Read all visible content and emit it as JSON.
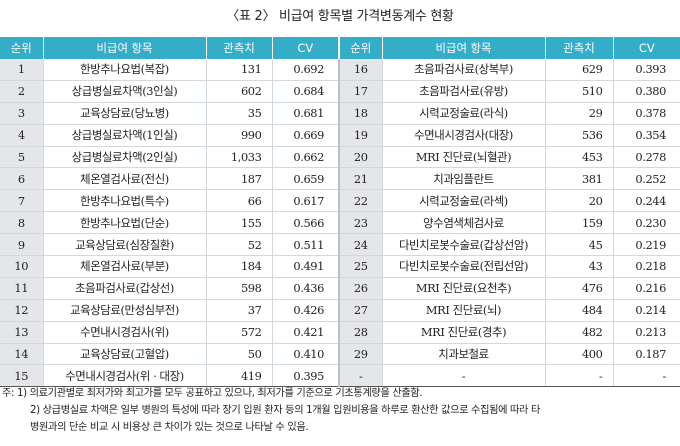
{
  "title": "〈표 2〉 비급여 항목별 가격변동계수 현황",
  "headers": [
    "순위",
    "비급여 항목",
    "관측치",
    "CV"
  ],
  "left_rows": [
    {
      "rank": "1",
      "item": "한방추나요법(복잡)",
      "count": "131",
      "cv": "0.692"
    },
    {
      "rank": "2",
      "item": "상급병실료차액(3인실)",
      "count": "602",
      "cv": "0.684"
    },
    {
      "rank": "3",
      "item": "교육상담료(당뇨병)",
      "count": "35",
      "cv": "0.681"
    },
    {
      "rank": "4",
      "item": "상급병실료차액(1인실)",
      "count": "990",
      "cv": "0.669"
    },
    {
      "rank": "5",
      "item": "상급병실료차액(2인실)",
      "count": "1,033",
      "cv": "0.662"
    },
    {
      "rank": "6",
      "item": "체온열검사료(전신)",
      "count": "187",
      "cv": "0.659"
    },
    {
      "rank": "7",
      "item": "한방추나요법(특수)",
      "count": "66",
      "cv": "0.617"
    },
    {
      "rank": "8",
      "item": "한방추나요법(단순)",
      "count": "155",
      "cv": "0.566"
    },
    {
      "rank": "9",
      "item": "교육상담료(심장질환)",
      "count": "52",
      "cv": "0.511"
    },
    {
      "rank": "10",
      "item": "체온열검사료(부분)",
      "count": "184",
      "cv": "0.491"
    },
    {
      "rank": "11",
      "item": "초음파검사료(갑상선)",
      "count": "598",
      "cv": "0.436"
    },
    {
      "rank": "12",
      "item": "교육상담료(만성심부전)",
      "count": "37",
      "cv": "0.426"
    },
    {
      "rank": "13",
      "item": "수면내시경검사(위)",
      "count": "572",
      "cv": "0.421"
    },
    {
      "rank": "14",
      "item": "교육상담료(고혈압)",
      "count": "50",
      "cv": "0.410"
    },
    {
      "rank": "15",
      "item": "수면내시경검사(위 · 대장)",
      "count": "419",
      "cv": "0.395"
    }
  ],
  "right_rows": [
    {
      "rank": "16",
      "item": "초음파검사료(상복부)",
      "count": "629",
      "cv": "0.393"
    },
    {
      "rank": "17",
      "item": "초음파검사료(유방)",
      "count": "510",
      "cv": "0.380"
    },
    {
      "rank": "18",
      "item": "시력교정술료(라식)",
      "count": "29",
      "cv": "0.378"
    },
    {
      "rank": "19",
      "item": "수면내시경검사(대장)",
      "count": "536",
      "cv": "0.354"
    },
    {
      "rank": "20",
      "item": "MRI 진단료(뇌혈관)",
      "count": "453",
      "cv": "0.278"
    },
    {
      "rank": "21",
      "item": "치과임플란트",
      "count": "381",
      "cv": "0.252"
    },
    {
      "rank": "22",
      "item": "시력교정술료(라섹)",
      "count": "20",
      "cv": "0.244"
    },
    {
      "rank": "23",
      "item": "양수염색체검사료",
      "count": "159",
      "cv": "0.230"
    },
    {
      "rank": "24",
      "item": "다빈치로봇수술료(갑상선암)",
      "count": "45",
      "cv": "0.219"
    },
    {
      "rank": "25",
      "item": "다빈치로봇수술료(전립선암)",
      "count": "43",
      "cv": "0.218"
    },
    {
      "rank": "26",
      "item": "MRI 진단료(요천추)",
      "count": "476",
      "cv": "0.216"
    },
    {
      "rank": "27",
      "item": "MRI 진단료(뇌)",
      "count": "484",
      "cv": "0.214"
    },
    {
      "rank": "28",
      "item": "MRI 진단료(경추)",
      "count": "482",
      "cv": "0.213"
    },
    {
      "rank": "29",
      "item": "치과보철료",
      "count": "400",
      "cv": "0.187"
    },
    {
      "rank": "-",
      "item": "-",
      "count": "-",
      "cv": "-"
    }
  ],
  "notes": [
    "주: 1) 의료기관별로 최저가와 최고가를 모두 공표하고 있으나, 최저가를 기준으로 기초통계량을 산출함.",
    "2) 상급병실료 차액은 일부 병원의 특성에 따라 장기 입원 환자 등의 1개월 입원비용을 하루로 환산한 값으로 수집됨에 따라 타",
    "병원과의 단순 비교 시 비용상 큰 차이가 있는 것으로 나타날 수 있음."
  ]
}
